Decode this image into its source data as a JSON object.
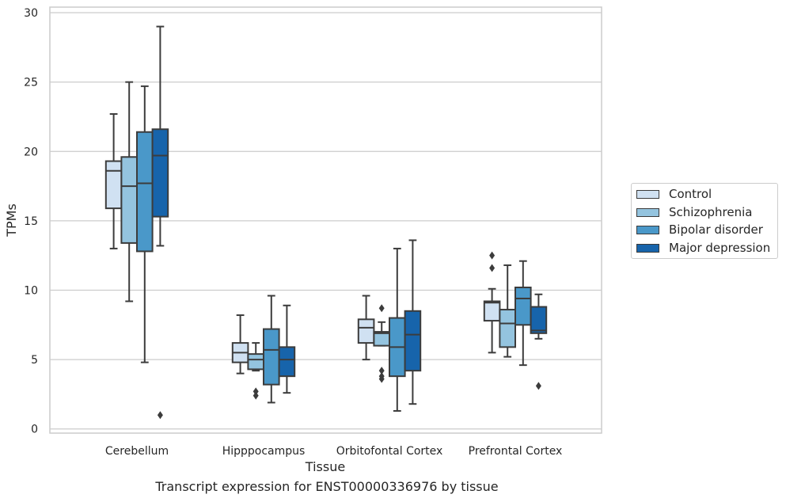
{
  "chart_data": {
    "type": "box",
    "title": "Transcript expression for ENST00000336976 by tissue",
    "xlabel": "Tissue",
    "ylabel": "TPMs",
    "ylim": [
      -0.3,
      30.4
    ],
    "yticks": [
      0,
      5,
      10,
      15,
      20,
      25,
      30
    ],
    "grid": true,
    "legend_position": "right",
    "categories": [
      "Cerebellum",
      "Hipppocampus",
      "Orbitofontal Cortex",
      "Prefrontal Cortex"
    ],
    "series": [
      {
        "name": "Control",
        "color": "#d0e1f2",
        "boxes": [
          {
            "whisker_low": 13.0,
            "q1": 15.9,
            "median": 18.6,
            "q3": 19.3,
            "whisker_high": 22.7,
            "outliers": []
          },
          {
            "whisker_low": 4.0,
            "q1": 4.8,
            "median": 5.5,
            "q3": 6.2,
            "whisker_high": 8.2,
            "outliers": []
          },
          {
            "whisker_low": 5.0,
            "q1": 6.2,
            "median": 7.3,
            "q3": 7.9,
            "whisker_high": 9.6,
            "outliers": []
          },
          {
            "whisker_low": 5.5,
            "q1": 7.8,
            "median": 9.1,
            "q3": 9.2,
            "whisker_high": 10.1,
            "outliers": [
              11.6,
              12.5
            ]
          }
        ]
      },
      {
        "name": "Schizophrenia",
        "color": "#94c4df",
        "boxes": [
          {
            "whisker_low": 9.2,
            "q1": 13.4,
            "median": 17.5,
            "q3": 19.6,
            "whisker_high": 25.0,
            "outliers": []
          },
          {
            "whisker_low": 4.2,
            "q1": 4.3,
            "median": 5.0,
            "q3": 5.4,
            "whisker_high": 6.2,
            "outliers": [
              2.4,
              2.7
            ]
          },
          {
            "whisker_low": 6.0,
            "q1": 6.0,
            "median": 6.9,
            "q3": 7.0,
            "whisker_high": 7.7,
            "outliers": [
              3.6,
              3.8,
              4.2,
              8.7
            ]
          },
          {
            "whisker_low": 5.2,
            "q1": 5.9,
            "median": 7.6,
            "q3": 8.6,
            "whisker_high": 11.8,
            "outliers": []
          }
        ]
      },
      {
        "name": "Bipolar disorder",
        "color": "#4a98c9",
        "boxes": [
          {
            "whisker_low": 4.8,
            "q1": 12.8,
            "median": 17.7,
            "q3": 21.4,
            "whisker_high": 24.7,
            "outliers": []
          },
          {
            "whisker_low": 1.9,
            "q1": 3.2,
            "median": 5.7,
            "q3": 7.2,
            "whisker_high": 9.6,
            "outliers": []
          },
          {
            "whisker_low": 1.3,
            "q1": 3.8,
            "median": 5.9,
            "q3": 8.0,
            "whisker_high": 13.0,
            "outliers": []
          },
          {
            "whisker_low": 4.6,
            "q1": 7.5,
            "median": 9.4,
            "q3": 10.2,
            "whisker_high": 12.1,
            "outliers": []
          }
        ]
      },
      {
        "name": "Major depression",
        "color": "#1764ab",
        "boxes": [
          {
            "whisker_low": 13.2,
            "q1": 15.3,
            "median": 19.7,
            "q3": 21.6,
            "whisker_high": 29.0,
            "outliers": [
              1.0
            ]
          },
          {
            "whisker_low": 2.6,
            "q1": 3.8,
            "median": 5.0,
            "q3": 5.9,
            "whisker_high": 8.9,
            "outliers": []
          },
          {
            "whisker_low": 1.8,
            "q1": 4.2,
            "median": 6.8,
            "q3": 8.5,
            "whisker_high": 13.6,
            "outliers": []
          },
          {
            "whisker_low": 6.5,
            "q1": 6.9,
            "median": 7.1,
            "q3": 8.8,
            "whisker_high": 9.7,
            "outliers": [
              3.1
            ]
          }
        ]
      }
    ]
  }
}
